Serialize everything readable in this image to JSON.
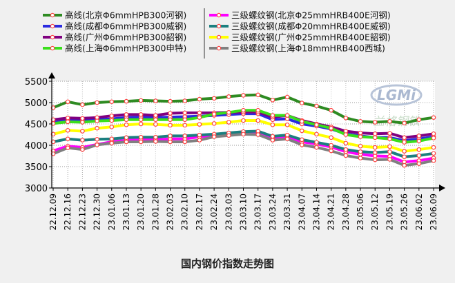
{
  "chart_data": {
    "type": "line",
    "title": "国内钢价指数走势图",
    "categories": [
      "22.12.09",
      "22.12.16",
      "22.12.23",
      "22.12.30",
      "23.01.06",
      "23.01.13",
      "23.01.20",
      "23.01.28",
      "23.02.03",
      "23.02.10",
      "23.02.17",
      "23.02.24",
      "23.03.03",
      "23.03.10",
      "23.03.17",
      "23.03.24",
      "23.03.31",
      "23.04.07",
      "23.04.14",
      "23.04.21",
      "23.04.28",
      "23.05.06",
      "23.05.12",
      "23.05.19",
      "23.05.26",
      "23.06.02",
      "23.06.09"
    ],
    "ylim": [
      3000,
      5500
    ],
    "yticks": [
      "5500",
      "5000",
      "4500",
      "4000",
      "3500",
      "3000"
    ],
    "grid": true,
    "legend_position": "top",
    "watermark": "LGMi",
    "watermark_text": "兰格钢铁",
    "series": [
      {
        "name": "高线(北京Φ6mmHPB300河钢)",
        "color": "#2e8b22",
        "marker": "#ff4444",
        "values": [
          4880,
          5020,
          4950,
          5000,
          5020,
          5030,
          5050,
          5040,
          5030,
          5040,
          5080,
          5100,
          5140,
          5170,
          5180,
          5060,
          5130,
          4990,
          4920,
          4820,
          4640,
          4560,
          4540,
          4560,
          4520,
          4600,
          4650
        ]
      },
      {
        "name": "高线(成都Φ6mmHPB300威钢)",
        "color": "#2a2ae0",
        "marker": "#ff4444",
        "values": [
          4530,
          4590,
          4580,
          4600,
          4620,
          4650,
          4660,
          4650,
          4660,
          4670,
          4680,
          4700,
          4720,
          4740,
          4740,
          4600,
          4620,
          4500,
          4450,
          4380,
          4270,
          4220,
          4180,
          4180,
          4110,
          4150,
          4200
        ]
      },
      {
        "name": "高线(广州Φ6mmHPB300韶钢)",
        "color": "#800080",
        "marker": "#ff4444",
        "values": [
          4600,
          4640,
          4630,
          4650,
          4690,
          4720,
          4720,
          4700,
          4750,
          4760,
          4760,
          4760,
          4770,
          4780,
          4780,
          4660,
          4700,
          4580,
          4500,
          4430,
          4330,
          4290,
          4270,
          4280,
          4180,
          4220,
          4270
        ]
      },
      {
        "name": "高线(上海Φ6mmHPB300申特)",
        "color": "#3adf1c",
        "marker": "#ff4444",
        "values": [
          4510,
          4550,
          4540,
          4570,
          4580,
          4600,
          4600,
          4600,
          4600,
          4600,
          4650,
          4730,
          4770,
          4820,
          4820,
          4700,
          4700,
          4560,
          4480,
          4400,
          4250,
          4200,
          4180,
          4150,
          4070,
          4100,
          4170
        ]
      },
      {
        "name": "三级螺纹钢(北京Φ25mmHRB400E河钢)",
        "color": "#ff00ff",
        "marker": "#ff4444",
        "values": [
          3870,
          3980,
          3950,
          4020,
          4080,
          4120,
          4130,
          4130,
          4150,
          4150,
          4200,
          4230,
          4250,
          4280,
          4270,
          4180,
          4200,
          4080,
          4030,
          3960,
          3850,
          3790,
          3750,
          3740,
          3610,
          3640,
          3700
        ]
      },
      {
        "name": "三级螺纹钢(成都Φ20mmHRB400E威钢)",
        "color": "#1b7f7f",
        "marker": "#ff4444",
        "values": [
          4080,
          4150,
          4120,
          4140,
          4150,
          4180,
          4190,
          4190,
          4220,
          4220,
          4240,
          4260,
          4290,
          4320,
          4330,
          4210,
          4240,
          4130,
          4070,
          4000,
          3900,
          3850,
          3830,
          3850,
          3730,
          3760,
          3810
        ]
      },
      {
        "name": "三级螺纹钢(广州Φ25mmHRB400E韶钢)",
        "color": "#ffff00",
        "marker": "#ff4444",
        "values": [
          4260,
          4350,
          4330,
          4400,
          4430,
          4480,
          4500,
          4490,
          4470,
          4470,
          4490,
          4510,
          4540,
          4580,
          4580,
          4480,
          4480,
          4340,
          4260,
          4180,
          4050,
          3980,
          3950,
          3970,
          3860,
          3900,
          3950
        ]
      },
      {
        "name": "三级螺纹钢(上海Φ18mmHRB400西城)",
        "color": "#808080",
        "marker": "#ff4444",
        "values": [
          3800,
          3940,
          3900,
          4010,
          4050,
          4080,
          4080,
          4090,
          4080,
          4080,
          4120,
          4200,
          4230,
          4260,
          4250,
          4120,
          4150,
          4010,
          3950,
          3870,
          3760,
          3700,
          3660,
          3670,
          3530,
          3570,
          3640
        ]
      }
    ]
  }
}
